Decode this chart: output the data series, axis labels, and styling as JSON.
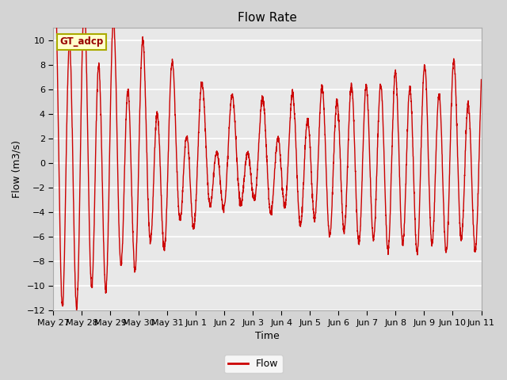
{
  "title": "Flow Rate",
  "ylabel": "Flow (m3/s)",
  "xlabel": "Time",
  "ylim": [
    -12,
    11
  ],
  "yticks": [
    -12,
    -10,
    -8,
    -6,
    -4,
    -2,
    0,
    2,
    4,
    6,
    8,
    10
  ],
  "legend_label": "Flow",
  "box_label": "GT_adcp",
  "line_color": "#cc0000",
  "fig_facecolor": "#d4d4d4",
  "ax_facecolor": "#e8e8e8",
  "grid_color": "#ffffff",
  "xtick_labels": [
    "May 27",
    "May 28",
    "May 29",
    "May 30",
    "May 31",
    "Jun 1",
    "Jun 2",
    "Jun 3",
    "Jun 4",
    "Jun 5",
    "Jun 6",
    "Jun 7",
    "Jun 8",
    "Jun 9",
    "Jun 10",
    "Jun 11"
  ],
  "title_fontsize": 11,
  "label_fontsize": 9,
  "tick_fontsize": 8
}
